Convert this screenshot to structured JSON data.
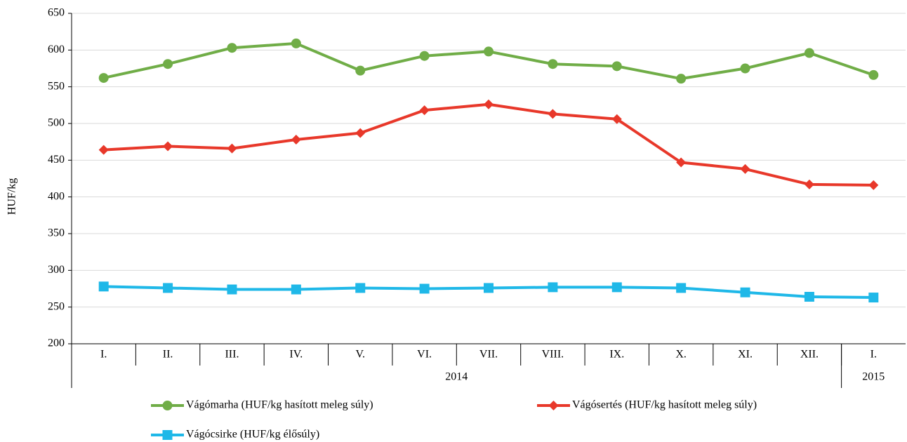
{
  "chart_data": {
    "type": "line",
    "y_label": "HUF/kg",
    "category_groups": [
      {
        "label": "2014",
        "categories": [
          "I.",
          "II.",
          "III.",
          "IV.",
          "V.",
          "VI.",
          "VII.",
          "VIII.",
          "IX.",
          "X.",
          "XI.",
          "XII."
        ]
      },
      {
        "label": "2015",
        "categories": [
          "I."
        ]
      }
    ],
    "series": [
      {
        "name": "Vágómarha (HUF/kg hasított meleg súly)",
        "color": "#70ad47",
        "marker": "circle",
        "values": [
          562,
          581,
          603,
          609,
          572,
          592,
          598,
          581,
          578,
          561,
          575,
          596,
          566
        ]
      },
      {
        "name": "Vágósertés (HUF/kg hasított meleg súly)",
        "color": "#e8382a",
        "marker": "diamond",
        "values": [
          464,
          469,
          466,
          478,
          487,
          518,
          526,
          513,
          506,
          447,
          438,
          417,
          416
        ]
      },
      {
        "name": "Vágócsirke (HUF/kg élősúly)",
        "color": "#1fb8e8",
        "marker": "square",
        "values": [
          278,
          276,
          274,
          274,
          276,
          275,
          276,
          277,
          277,
          276,
          270,
          264,
          263
        ]
      }
    ],
    "ylim": [
      200,
      650
    ],
    "yticks": [
      200,
      250,
      300,
      350,
      400,
      450,
      500,
      550,
      600,
      650
    ],
    "grid": true
  }
}
